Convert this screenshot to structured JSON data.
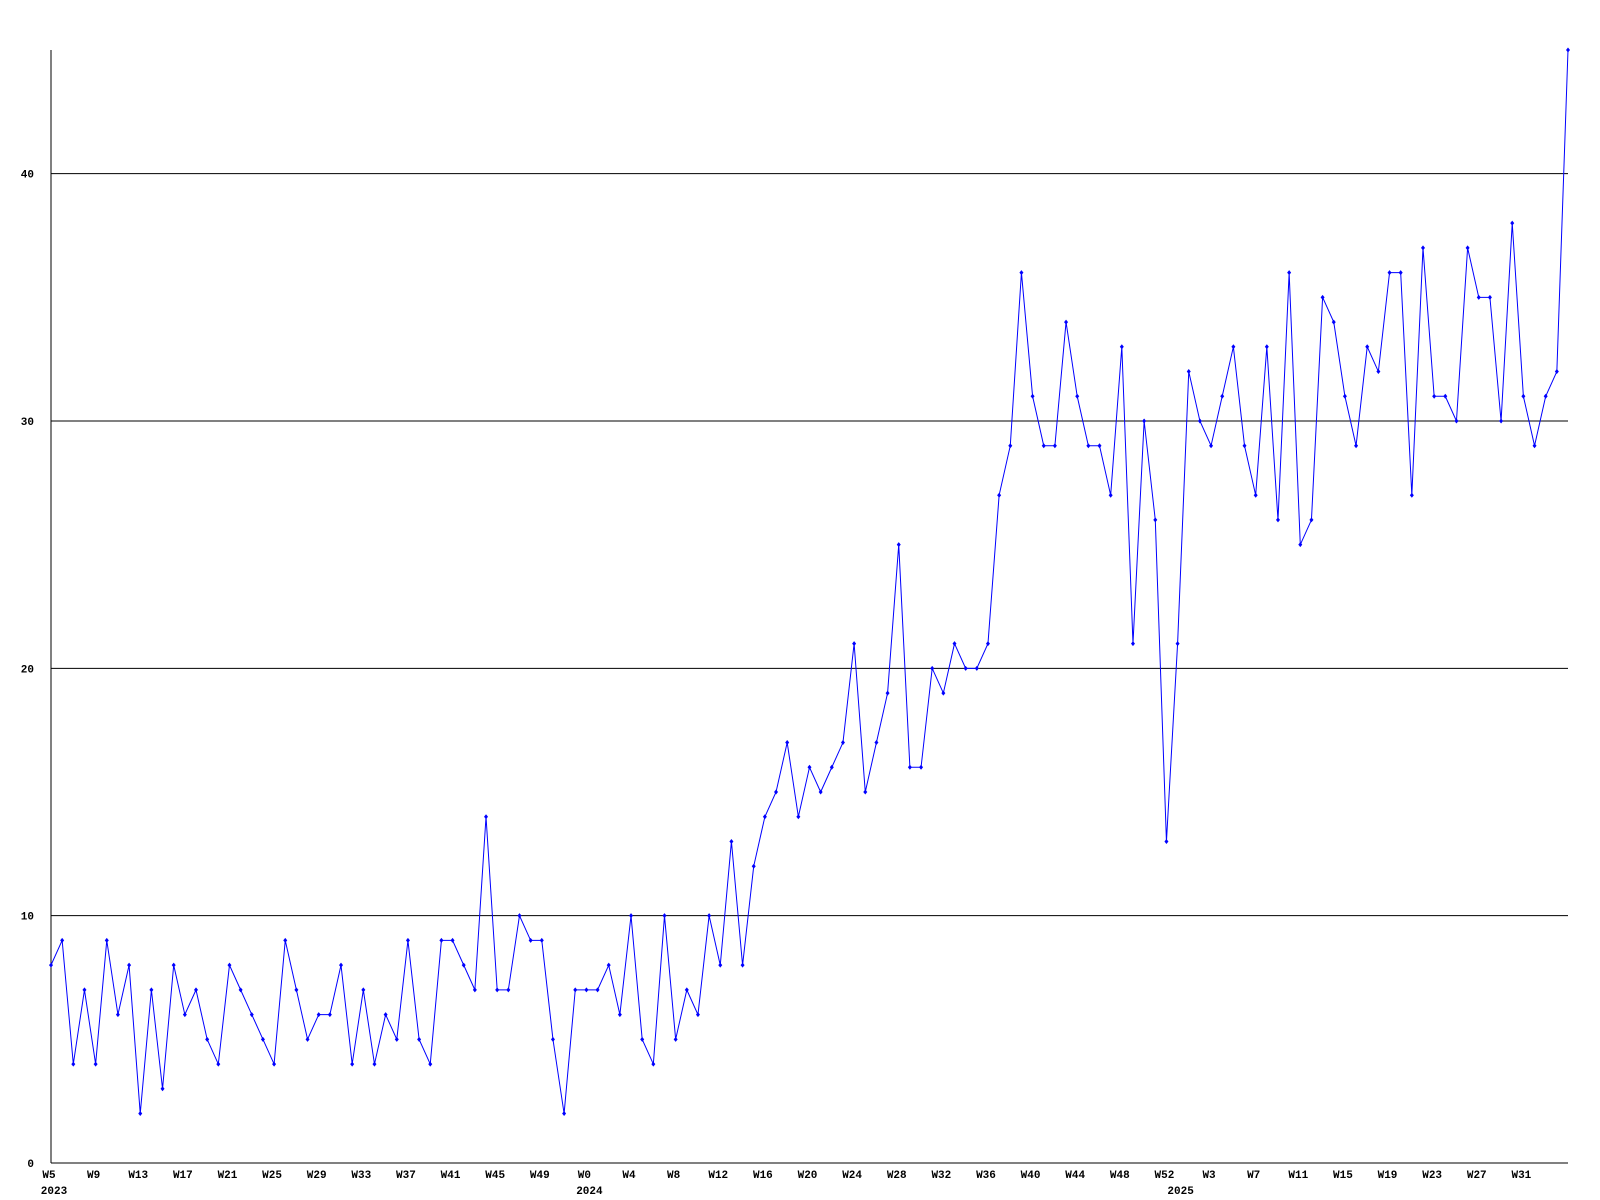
{
  "chart_data": {
    "type": "line",
    "categories": [
      "W5",
      null,
      null,
      null,
      "W9",
      null,
      null,
      null,
      "W13",
      null,
      null,
      null,
      "W17",
      null,
      null,
      null,
      "W21",
      null,
      null,
      null,
      "W25",
      null,
      null,
      null,
      "W29",
      null,
      null,
      null,
      "W33",
      null,
      null,
      null,
      "W37",
      null,
      null,
      null,
      "W41",
      null,
      null,
      null,
      "W45",
      null,
      null,
      null,
      "W49",
      null,
      null,
      null,
      "W0",
      null,
      null,
      null,
      "W4",
      null,
      null,
      null,
      "W8",
      null,
      null,
      null,
      "W12",
      null,
      null,
      null,
      "W16",
      null,
      null,
      null,
      "W20",
      null,
      null,
      null,
      "W24",
      null,
      null,
      null,
      "W28",
      null,
      null,
      null,
      "W32",
      null,
      null,
      null,
      "W36",
      null,
      null,
      null,
      "W40",
      null,
      null,
      null,
      "W44",
      null,
      null,
      null,
      "W48",
      null,
      null,
      null,
      "W52",
      null,
      null,
      null,
      "W3",
      null,
      null,
      null,
      "W7",
      null,
      null,
      null,
      "W11",
      null,
      null,
      null,
      "W15",
      null,
      null,
      null,
      "W19",
      null,
      null,
      null,
      "W23",
      null,
      null,
      null,
      "W27",
      null,
      null,
      null,
      "W31",
      null,
      null,
      null,
      null
    ],
    "year_labels": [
      "2023",
      null,
      null,
      null,
      null,
      null,
      null,
      null,
      null,
      null,
      null,
      null,
      null,
      null,
      null,
      null,
      null,
      null,
      null,
      null,
      null,
      null,
      null,
      null,
      null,
      null,
      null,
      null,
      null,
      null,
      null,
      null,
      null,
      null,
      null,
      null,
      null,
      null,
      null,
      null,
      null,
      null,
      null,
      null,
      null,
      null,
      null,
      null,
      "2024",
      null,
      null,
      null,
      null,
      null,
      null,
      null,
      null,
      null,
      null,
      null,
      null,
      null,
      null,
      null,
      null,
      null,
      null,
      null,
      null,
      null,
      null,
      null,
      null,
      null,
      null,
      null,
      null,
      null,
      null,
      null,
      null,
      null,
      null,
      null,
      null,
      null,
      null,
      null,
      null,
      null,
      null,
      null,
      null,
      null,
      null,
      null,
      null,
      null,
      null,
      null,
      null,
      "2025",
      null,
      null,
      null,
      null,
      null,
      null,
      null,
      null,
      null,
      null,
      null,
      null,
      null,
      null,
      null,
      null,
      null,
      null,
      null,
      null,
      null,
      null,
      null,
      null,
      null,
      null,
      null,
      null,
      null,
      null,
      null,
      null,
      null,
      null,
      null
    ],
    "series": [
      {
        "color": "#0000ff",
        "values": [
          8,
          9,
          4,
          7,
          4,
          9,
          6,
          8,
          2,
          7,
          3,
          8,
          6,
          7,
          5,
          4,
          8,
          7,
          6,
          5,
          4,
          9,
          7,
          5,
          6,
          6,
          8,
          4,
          7,
          4,
          6,
          5,
          9,
          5,
          4,
          9,
          9,
          8,
          7,
          14,
          7,
          7,
          10,
          9,
          9,
          5,
          2,
          7,
          7,
          7,
          8,
          6,
          10,
          5,
          4,
          10,
          5,
          7,
          6,
          10,
          8,
          13,
          8,
          12,
          14,
          15,
          17,
          14,
          16,
          15,
          16,
          17,
          21,
          15,
          17,
          19,
          25,
          16,
          16,
          20,
          19,
          21,
          20,
          20,
          21,
          27,
          29,
          36,
          31,
          29,
          29,
          34,
          31,
          29,
          29,
          27,
          33,
          21,
          30,
          26,
          13,
          21,
          32,
          30,
          29,
          31,
          33,
          29,
          27,
          33,
          26,
          36,
          25,
          26,
          35,
          34,
          31,
          29,
          33,
          32,
          36,
          36,
          27,
          37,
          31,
          31,
          30,
          37,
          35,
          35,
          30,
          38,
          31,
          29,
          31,
          32,
          45
        ]
      }
    ],
    "ylim": [
      0,
      45
    ],
    "yticks": [
      0,
      10,
      20,
      30,
      40
    ],
    "grid": true
  }
}
